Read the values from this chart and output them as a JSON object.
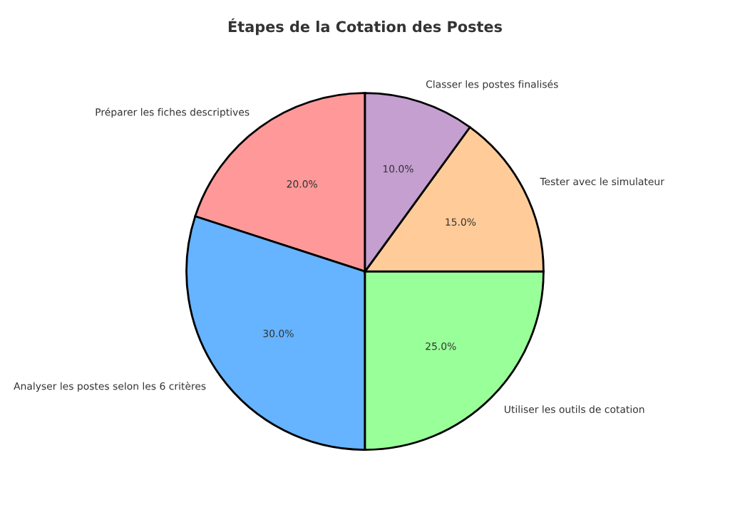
{
  "chart_data": {
    "type": "pie",
    "title": "Étapes de la Cotation des Postes",
    "categories": [
      "Préparer les fiches descriptives",
      "Analyser les postes selon les 6 critères",
      "Utiliser les outils de cotation",
      "Tester avec le simulateur",
      "Classer les postes finalisés"
    ],
    "values": [
      20,
      30,
      25,
      15,
      10
    ],
    "value_labels": [
      "20.0%",
      "30.0%",
      "25.0%",
      "15.0%",
      "10.0%"
    ],
    "colors": [
      "#ff9999",
      "#66b3ff",
      "#99ff99",
      "#ffcc99",
      "#c49fd0"
    ]
  }
}
